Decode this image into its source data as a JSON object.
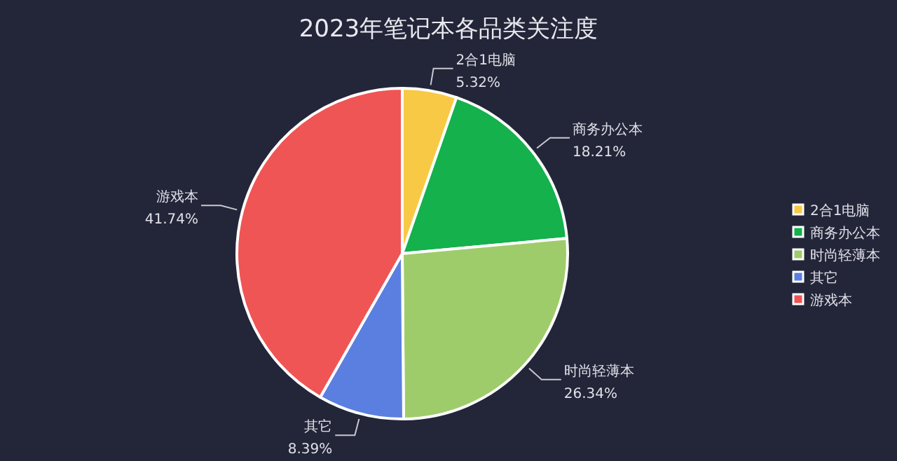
{
  "chart_data": {
    "type": "pie",
    "title": "2023年笔记本各品类关注度",
    "categories": [
      "2合1电脑",
      "商务办公本",
      "时尚轻薄本",
      "其它",
      "游戏本"
    ],
    "values": [
      5.32,
      18.21,
      26.34,
      8.39,
      41.74
    ],
    "colors": [
      "#f7c945",
      "#14b14c",
      "#9fcc6b",
      "#5b7fe0",
      "#ef5554"
    ],
    "value_labels": [
      "5.32%",
      "18.21%",
      "26.34%",
      "8.39%",
      "41.74%"
    ],
    "legend": "right"
  }
}
